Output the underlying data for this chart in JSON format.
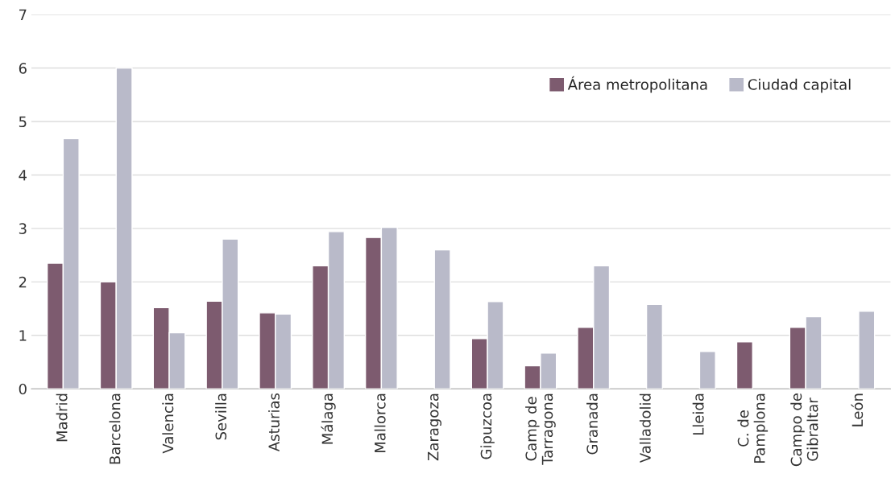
{
  "chart_data": {
    "type": "bar",
    "categories": [
      "Madrid",
      "Barcelona",
      "Valencia",
      "Sevilla",
      "Asturias",
      "Málaga",
      "Mallorca",
      "Zaragoza",
      "Gipuzcoa",
      "Camp de\nTarragona",
      "Granada",
      "Valladolid",
      "Lleida",
      "C. de\nPamplona",
      "Campo de\nGibraltar",
      "León"
    ],
    "series": [
      {
        "name": "Área metropolitana",
        "color": "#7d5b6f",
        "values": [
          2.35,
          2.0,
          1.52,
          1.64,
          1.42,
          2.3,
          2.83,
          null,
          0.94,
          0.43,
          1.15,
          null,
          null,
          0.88,
          1.15,
          null
        ]
      },
      {
        "name": "Ciudad capital",
        "color": "#b9bac9",
        "values": [
          4.68,
          6.0,
          1.05,
          2.8,
          1.4,
          2.94,
          3.02,
          2.6,
          1.63,
          0.67,
          2.3,
          1.58,
          0.7,
          null,
          1.35,
          1.45
        ]
      }
    ],
    "ylim": [
      0,
      7
    ],
    "yticks": [
      0,
      1,
      2,
      3,
      4,
      5,
      6,
      7
    ],
    "grid": "y",
    "legend": "top right"
  }
}
